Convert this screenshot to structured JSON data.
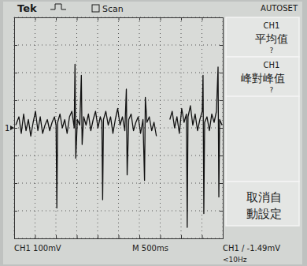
{
  "chart_data": {
    "type": "line",
    "annotations": [
      "Tek",
      "Scan",
      "AUTOSET",
      "CH1",
      "平均值",
      "?",
      "CH1",
      "峰對峰值",
      "?",
      "取消自",
      "動設定",
      "CH1 100mV",
      "M 500ms",
      "CH1 / -1.49mV",
      "<10Hz",
      "1"
    ],
    "x": [
      38,
      114,
      170,
      227,
      284,
      341,
      398,
      455,
      511,
      568,
      625,
      682,
      739,
      795,
      852,
      909,
      966,
      1004,
      1023,
      1042,
      1098,
      1155,
      1212,
      1269,
      1326,
      1383,
      1439,
      1458,
      1477,
      1515,
      1572,
      1610,
      1629,
      1667,
      1723,
      1780,
      1837,
      1894,
      1951,
      2008,
      2064,
      2102,
      2121,
      2140,
      2197,
      2254,
      2311,
      2367,
      2424,
      2481,
      2538,
      2595,
      2652,
      2689,
      2708,
      2746,
      2803,
      2860,
      2917,
      2973,
      3030,
      3087,
      3125,
      3144,
      3182,
      3239,
      3296,
      3352,
      3409,
      3500,
      3731,
      3788,
      3845,
      3902,
      3959,
      4016,
      4072,
      4129,
      4148,
      4167,
      4224,
      4281,
      4338,
      4395,
      4451,
      4508,
      4527,
      4546,
      4565,
      4622,
      4679,
      4736,
      4792,
      4849,
      4887,
      4906,
      4925,
      4982
    ],
    "values": [
      10,
      40,
      -20,
      50,
      -10,
      30,
      -30,
      20,
      60,
      -10,
      40,
      -20,
      10,
      30,
      -10,
      20,
      40,
      10,
      -290,
      20,
      50,
      0,
      30,
      -20,
      40,
      60,
      0,
      230,
      -110,
      30,
      10,
      190,
      -60,
      40,
      10,
      50,
      -10,
      30,
      60,
      0,
      40,
      20,
      -260,
      30,
      60,
      10,
      40,
      -20,
      30,
      70,
      10,
      40,
      -10,
      140,
      -170,
      30,
      50,
      -10,
      20,
      40,
      -20,
      30,
      -190,
      110,
      20,
      40,
      -10,
      20,
      -30,
      null,
      30,
      60,
      0,
      40,
      -20,
      70,
      20,
      50,
      -360,
      40,
      80,
      10,
      50,
      -10,
      30,
      60,
      190,
      -310,
      20,
      40,
      -10,
      50,
      20,
      60,
      220,
      -250,
      30,
      10
    ],
    "color": "#111111",
    "xlim": [
      0,
      5000
    ],
    "xticks": [
      0,
      500,
      1000,
      1500,
      2000,
      2500,
      3000,
      3500,
      4000,
      4500,
      5000
    ],
    "ylim": [
      -400,
      400
    ],
    "yticks": [
      -400,
      -300,
      -200,
      -100,
      0,
      100,
      200,
      300,
      400
    ],
    "grid": true,
    "tick_labels": false
  }
}
